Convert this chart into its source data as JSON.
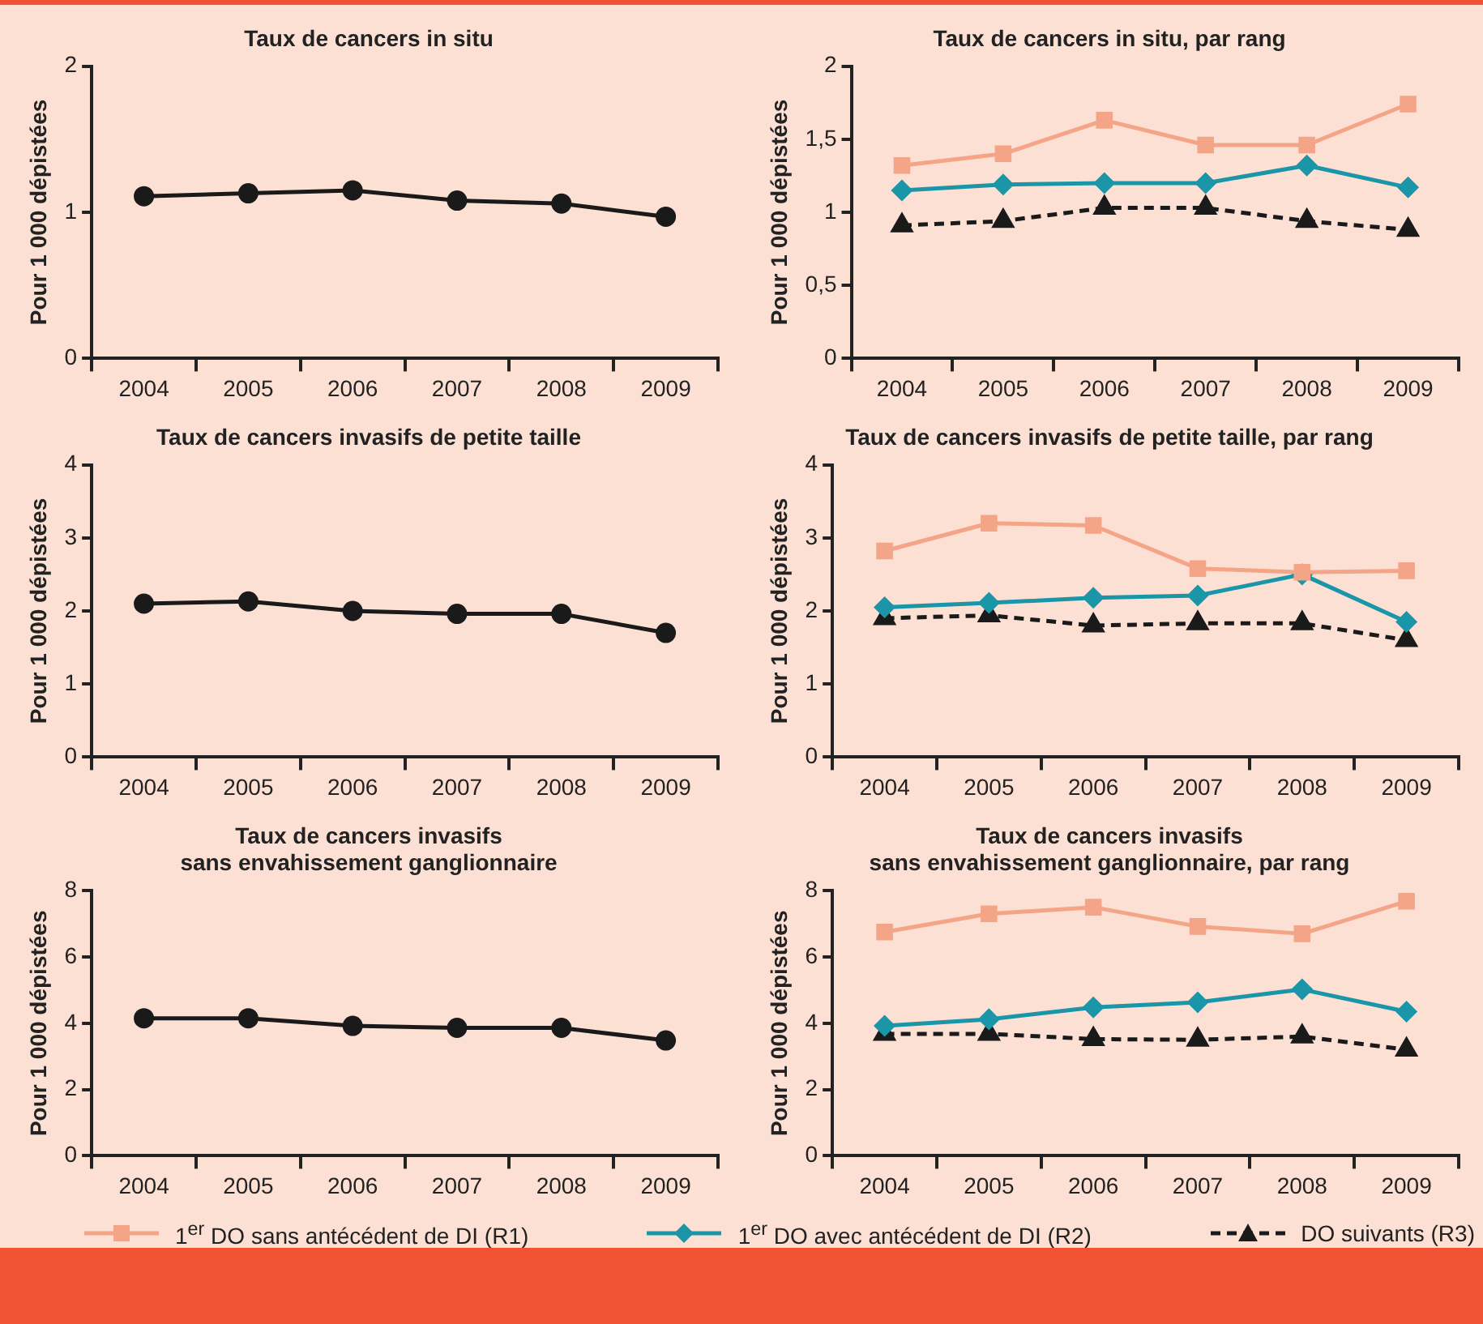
{
  "chart_data": [
    {
      "type": "line",
      "title": "Taux de cancers in situ",
      "ylabel": "Pour 1 000 dépistées",
      "categories": [
        "2004",
        "2005",
        "2006",
        "2007",
        "2008",
        "2009"
      ],
      "ylim": [
        0,
        2
      ],
      "yticks": [
        0,
        1,
        2
      ],
      "series": [
        {
          "color": "#1a1a1a",
          "marker": "circle",
          "line_style": "solid",
          "values": [
            1.11,
            1.13,
            1.15,
            1.08,
            1.06,
            0.97
          ]
        }
      ]
    },
    {
      "type": "line",
      "title": "Taux de cancers in situ, par rang",
      "ylabel": "Pour 1 000 dépistées",
      "categories": [
        "2004",
        "2005",
        "2006",
        "2007",
        "2008",
        "2009"
      ],
      "ylim": [
        0,
        2
      ],
      "yticks": [
        0,
        {
          "value": 0.5,
          "label": "0,5"
        },
        1,
        {
          "value": 1.5,
          "label": "1,5"
        },
        2
      ],
      "series": [
        {
          "color": "#f4a587",
          "marker": "square",
          "line_style": "solid",
          "values": [
            1.32,
            1.4,
            1.63,
            1.46,
            1.46,
            1.74
          ]
        },
        {
          "color": "#1a96a8",
          "marker": "diamond",
          "line_style": "solid",
          "values": [
            1.15,
            1.19,
            1.2,
            1.2,
            1.32,
            1.17
          ]
        },
        {
          "color": "#1a1a1a",
          "marker": "triangle",
          "line_style": "dashed",
          "values": [
            0.91,
            0.94,
            1.03,
            1.03,
            0.94,
            0.88
          ]
        }
      ]
    },
    {
      "type": "line",
      "title": "Taux de cancers invasifs de petite taille",
      "ylabel": "Pour 1 000 dépistées",
      "categories": [
        "2004",
        "2005",
        "2006",
        "2007",
        "2008",
        "2009"
      ],
      "ylim": [
        0,
        4
      ],
      "yticks": [
        0,
        1,
        2,
        3,
        4
      ],
      "series": [
        {
          "color": "#1a1a1a",
          "marker": "circle",
          "line_style": "solid",
          "values": [
            2.1,
            2.13,
            2.0,
            1.96,
            1.96,
            1.7
          ]
        }
      ]
    },
    {
      "type": "line",
      "title": "Taux de cancers invasifs de petite taille, par rang",
      "ylabel": "Pour 1 000 dépistées",
      "categories": [
        "2004",
        "2005",
        "2006",
        "2007",
        "2008",
        "2009"
      ],
      "ylim": [
        0,
        4
      ],
      "yticks": [
        0,
        1,
        2,
        3,
        4
      ],
      "series": [
        {
          "color": "#f4a587",
          "marker": "square",
          "line_style": "solid",
          "values": [
            2.82,
            3.2,
            3.17,
            2.58,
            2.53,
            2.55
          ]
        },
        {
          "color": "#1a96a8",
          "marker": "diamond",
          "line_style": "solid",
          "values": [
            2.05,
            2.11,
            2.18,
            2.21,
            2.5,
            1.85
          ]
        },
        {
          "color": "#1a1a1a",
          "marker": "triangle",
          "line_style": "dashed",
          "values": [
            1.9,
            1.94,
            1.8,
            1.83,
            1.83,
            1.6
          ]
        }
      ]
    },
    {
      "type": "line",
      "title": "Taux de cancers invasifs\nsans envahissement ganglionnaire",
      "ylabel": "Pour 1 000 dépistées",
      "categories": [
        "2004",
        "2005",
        "2006",
        "2007",
        "2008",
        "2009"
      ],
      "ylim": [
        0,
        8
      ],
      "yticks": [
        0,
        2,
        4,
        6,
        8
      ],
      "series": [
        {
          "color": "#1a1a1a",
          "marker": "circle",
          "line_style": "solid",
          "values": [
            4.15,
            4.15,
            3.92,
            3.86,
            3.86,
            3.48
          ]
        }
      ]
    },
    {
      "type": "line",
      "title": "Taux de cancers invasifs\nsans envahissement ganglionnaire, par rang",
      "ylabel": "Pour 1 000 dépistées",
      "categories": [
        "2004",
        "2005",
        "2006",
        "2007",
        "2008",
        "2009"
      ],
      "ylim": [
        0,
        8
      ],
      "yticks": [
        0,
        2,
        4,
        6,
        8
      ],
      "legend": "bottom",
      "series": [
        {
          "name": "1$^{er}$ DO sans antécédent de DI (R1)",
          "color": "#f4a587",
          "marker": "square",
          "line_style": "solid",
          "values": [
            6.75,
            7.3,
            7.5,
            6.92,
            6.7,
            7.68
          ]
        },
        {
          "name": "1$^{er}$ DO avec antécédent de DI (R2)",
          "color": "#1a96a8",
          "marker": "diamond",
          "line_style": "solid",
          "values": [
            3.92,
            4.12,
            4.48,
            4.63,
            5.02,
            4.35
          ]
        },
        {
          "name": "DO suivants (R3)",
          "color": "#1a1a1a",
          "marker": "triangle",
          "line_style": "dashed",
          "values": [
            3.68,
            3.68,
            3.52,
            3.5,
            3.6,
            3.2
          ]
        }
      ]
    }
  ]
}
